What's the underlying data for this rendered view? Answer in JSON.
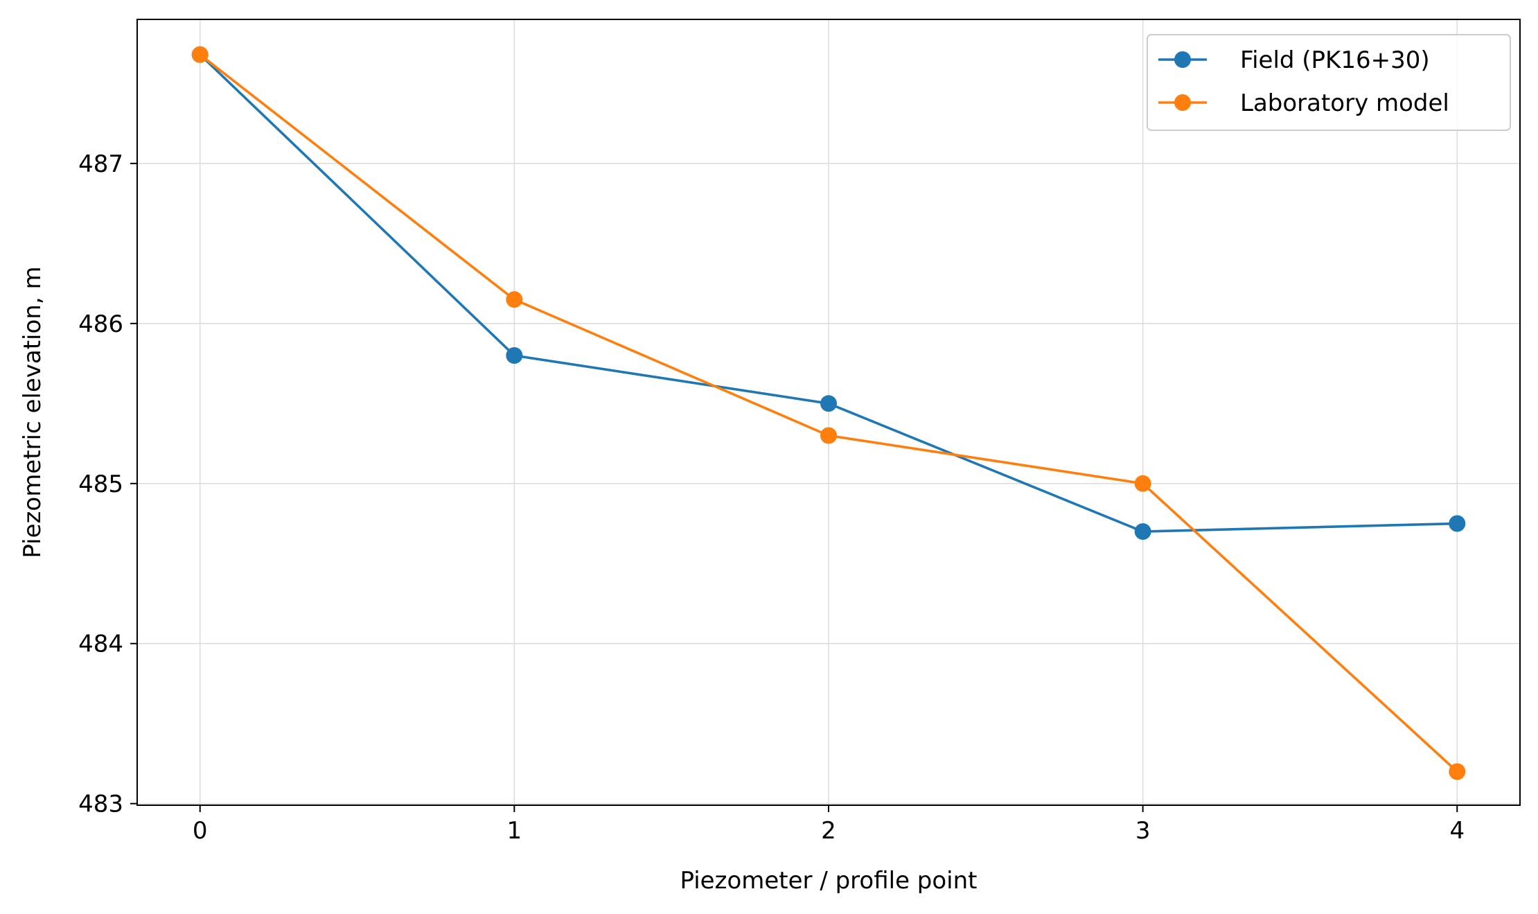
{
  "chart_data": {
    "type": "line",
    "title": "",
    "xlabel": "Piezometer / profile point",
    "ylabel": "Piezometric elevation, m",
    "x": [
      0,
      1,
      2,
      3,
      4
    ],
    "x_ticks": [
      0,
      1,
      2,
      3,
      4
    ],
    "y_ticks": [
      483,
      484,
      485,
      486,
      487
    ],
    "xlim": [
      -0.2,
      4.2
    ],
    "ylim": [
      482.99,
      487.9
    ],
    "grid": true,
    "legend_position": "top-right",
    "series": [
      {
        "name": "Field (PK16+30)",
        "color": "#1f77b4",
        "marker": "circle",
        "values": [
          487.68,
          485.8,
          485.5,
          484.7,
          484.75
        ]
      },
      {
        "name": "Laboratory model",
        "color": "#ff7f0e",
        "marker": "circle",
        "values": [
          487.68,
          486.15,
          485.3,
          485.0,
          483.2
        ]
      }
    ]
  }
}
